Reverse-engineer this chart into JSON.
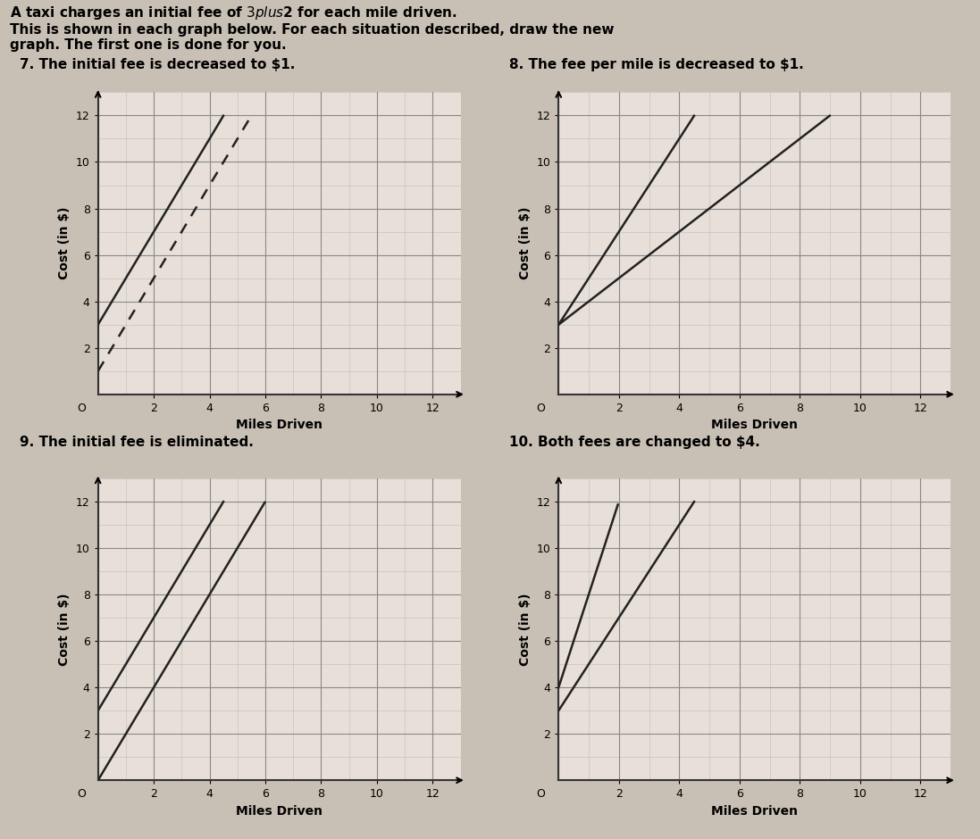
{
  "title_line1": "A taxi charges an initial fee of $3 plus $2 for each mile driven.",
  "title_line2": "This is shown in each graph below. For each situation described, draw the new",
  "title_line3": "graph. The first one is done for you.",
  "problems": [
    {
      "number": "7.",
      "description": "The initial fee is decreased to $1.",
      "original": {
        "intercept": 3,
        "slope": 2
      },
      "new": {
        "intercept": 1,
        "slope": 2
      },
      "new_linestyle": "dashed"
    },
    {
      "number": "8.",
      "description": "The fee per mile is decreased to $1.",
      "original": {
        "intercept": 3,
        "slope": 2
      },
      "new": {
        "intercept": 3,
        "slope": 1
      },
      "new_linestyle": "solid"
    },
    {
      "number": "9.",
      "description": "The initial fee is eliminated.",
      "original": {
        "intercept": 3,
        "slope": 2
      },
      "new": {
        "intercept": 0,
        "slope": 2
      },
      "new_linestyle": "solid"
    },
    {
      "number": "10.",
      "description": "Both fees are changed to $4.",
      "original": {
        "intercept": 3,
        "slope": 2
      },
      "new": {
        "intercept": 4,
        "slope": 4
      },
      "new_linestyle": "solid"
    }
  ],
  "x_label": "Miles Driven",
  "y_label": "Cost (in $)",
  "x_ticks": [
    2,
    4,
    6,
    8,
    10,
    12
  ],
  "y_ticks": [
    2,
    4,
    6,
    8,
    10,
    12
  ],
  "xlim": [
    0,
    13
  ],
  "ylim": [
    0,
    13
  ],
  "grid_major_color": "#888888",
  "grid_minor_color": "#bbbbbb",
  "line_color": "#222222",
  "line_width": 1.8,
  "graph_bg": "#e8e0d8",
  "figure_bg": "#c8c0b4",
  "title_fontsize": 11,
  "label_fontsize": 10,
  "tick_fontsize": 9,
  "problem_fontsize": 11
}
